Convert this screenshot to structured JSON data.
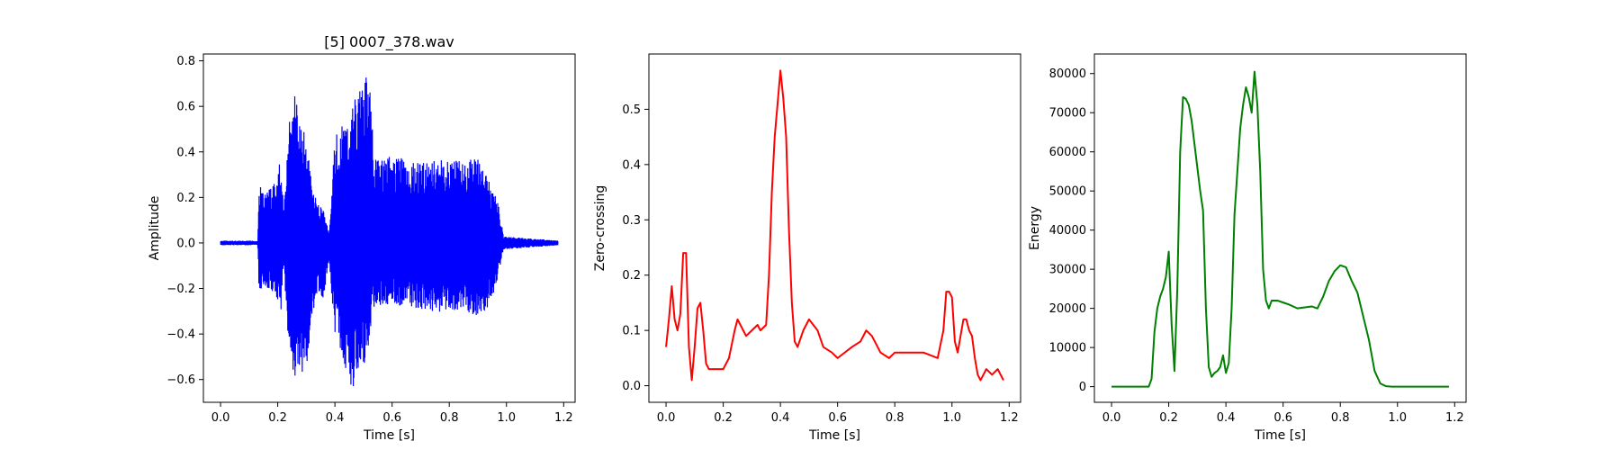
{
  "chart_data": [
    {
      "type": "line",
      "title": "[5] 0007_378.wav",
      "xlabel": "Time [s]",
      "ylabel": "Amplitude",
      "xlim": [
        -0.06,
        1.24
      ],
      "ylim": [
        -0.7,
        0.83
      ],
      "xticks": [
        0.0,
        0.2,
        0.4,
        0.6,
        0.8,
        1.0,
        1.2
      ],
      "yticks": [
        -0.6,
        -0.4,
        -0.2,
        0.0,
        0.2,
        0.4,
        0.6,
        0.8
      ],
      "xtick_labels": [
        "0.0",
        "0.2",
        "0.4",
        "0.6",
        "0.8",
        "1.0",
        "1.2"
      ],
      "ytick_labels": [
        "−0.6",
        "−0.4",
        "−0.2",
        "0.0",
        "0.2",
        "0.4",
        "0.6",
        "0.8"
      ],
      "grid": false,
      "color": "#0000ff",
      "envelope": {
        "x": [
          0.0,
          0.13,
          0.135,
          0.15,
          0.18,
          0.2,
          0.21,
          0.22,
          0.24,
          0.26,
          0.28,
          0.3,
          0.32,
          0.34,
          0.36,
          0.37,
          0.38,
          0.4,
          0.42,
          0.44,
          0.46,
          0.48,
          0.5,
          0.52,
          0.54,
          0.56,
          0.6,
          0.64,
          0.7,
          0.76,
          0.8,
          0.84,
          0.88,
          0.9,
          0.93,
          0.95,
          0.97,
          0.99,
          1.18
        ],
        "upper": [
          0.01,
          0.01,
          0.27,
          0.23,
          0.25,
          0.28,
          0.4,
          0.15,
          0.55,
          0.66,
          0.55,
          0.45,
          0.25,
          0.17,
          0.15,
          0.09,
          0.05,
          0.47,
          0.53,
          0.52,
          0.6,
          0.67,
          0.76,
          0.7,
          0.4,
          0.37,
          0.39,
          0.37,
          0.35,
          0.37,
          0.38,
          0.38,
          0.38,
          0.37,
          0.3,
          0.25,
          0.18,
          0.03,
          0.01
        ],
        "lower": [
          -0.01,
          -0.01,
          -0.23,
          -0.2,
          -0.21,
          -0.25,
          -0.33,
          -0.1,
          -0.5,
          -0.6,
          -0.58,
          -0.55,
          -0.33,
          -0.2,
          -0.27,
          -0.15,
          -0.1,
          -0.4,
          -0.48,
          -0.6,
          -0.65,
          -0.58,
          -0.55,
          -0.43,
          -0.28,
          -0.28,
          -0.27,
          -0.28,
          -0.29,
          -0.31,
          -0.31,
          -0.31,
          -0.32,
          -0.32,
          -0.3,
          -0.25,
          -0.15,
          -0.03,
          -0.01
        ]
      }
    },
    {
      "type": "line",
      "title": "",
      "xlabel": "Time [s]",
      "ylabel": "Zero-crossing",
      "xlim": [
        -0.06,
        1.24
      ],
      "ylim": [
        -0.03,
        0.6
      ],
      "xticks": [
        0.0,
        0.2,
        0.4,
        0.6,
        0.8,
        1.0,
        1.2
      ],
      "yticks": [
        0.0,
        0.1,
        0.2,
        0.3,
        0.4,
        0.5
      ],
      "xtick_labels": [
        "0.0",
        "0.2",
        "0.4",
        "0.6",
        "0.8",
        "1.0",
        "1.2"
      ],
      "ytick_labels": [
        "0.0",
        "0.1",
        "0.2",
        "0.3",
        "0.4",
        "0.5"
      ],
      "grid": false,
      "color": "#ff0000",
      "x": [
        0.0,
        0.01,
        0.02,
        0.03,
        0.04,
        0.05,
        0.06,
        0.07,
        0.08,
        0.09,
        0.1,
        0.11,
        0.12,
        0.13,
        0.14,
        0.15,
        0.2,
        0.22,
        0.24,
        0.25,
        0.27,
        0.28,
        0.3,
        0.32,
        0.33,
        0.35,
        0.36,
        0.37,
        0.38,
        0.39,
        0.4,
        0.41,
        0.42,
        0.43,
        0.44,
        0.45,
        0.46,
        0.48,
        0.5,
        0.53,
        0.55,
        0.58,
        0.6,
        0.65,
        0.68,
        0.7,
        0.72,
        0.75,
        0.78,
        0.8,
        0.85,
        0.9,
        0.95,
        0.97,
        0.98,
        0.99,
        1.0,
        1.01,
        1.02,
        1.03,
        1.04,
        1.05,
        1.06,
        1.07,
        1.08,
        1.09,
        1.1,
        1.11,
        1.12,
        1.14,
        1.16,
        1.18
      ],
      "y": [
        0.07,
        0.12,
        0.18,
        0.12,
        0.1,
        0.13,
        0.24,
        0.24,
        0.07,
        0.01,
        0.07,
        0.14,
        0.15,
        0.1,
        0.04,
        0.03,
        0.03,
        0.05,
        0.1,
        0.12,
        0.1,
        0.09,
        0.1,
        0.11,
        0.1,
        0.11,
        0.2,
        0.35,
        0.45,
        0.51,
        0.57,
        0.52,
        0.45,
        0.28,
        0.15,
        0.08,
        0.07,
        0.1,
        0.12,
        0.1,
        0.07,
        0.06,
        0.05,
        0.07,
        0.08,
        0.1,
        0.09,
        0.06,
        0.05,
        0.06,
        0.06,
        0.06,
        0.05,
        0.1,
        0.17,
        0.17,
        0.16,
        0.08,
        0.06,
        0.09,
        0.12,
        0.12,
        0.1,
        0.09,
        0.05,
        0.02,
        0.01,
        0.02,
        0.03,
        0.02,
        0.03,
        0.01
      ]
    },
    {
      "type": "line",
      "title": "",
      "xlabel": "Time [s]",
      "ylabel": "Energy",
      "xlim": [
        -0.06,
        1.24
      ],
      "ylim": [
        -4000,
        85000
      ],
      "xticks": [
        0.0,
        0.2,
        0.4,
        0.6,
        0.8,
        1.0,
        1.2
      ],
      "yticks": [
        0,
        10000,
        20000,
        30000,
        40000,
        50000,
        60000,
        70000,
        80000
      ],
      "xtick_labels": [
        "0.0",
        "0.2",
        "0.4",
        "0.6",
        "0.8",
        "1.0",
        "1.2"
      ],
      "ytick_labels": [
        "0",
        "10000",
        "20000",
        "30000",
        "40000",
        "50000",
        "60000",
        "70000",
        "80000"
      ],
      "grid": false,
      "color": "#008000",
      "x": [
        0.0,
        0.13,
        0.14,
        0.15,
        0.16,
        0.17,
        0.18,
        0.19,
        0.2,
        0.21,
        0.22,
        0.23,
        0.24,
        0.25,
        0.26,
        0.27,
        0.28,
        0.29,
        0.3,
        0.31,
        0.32,
        0.33,
        0.34,
        0.35,
        0.36,
        0.37,
        0.38,
        0.39,
        0.4,
        0.41,
        0.42,
        0.43,
        0.44,
        0.45,
        0.46,
        0.47,
        0.48,
        0.49,
        0.5,
        0.51,
        0.52,
        0.53,
        0.54,
        0.55,
        0.56,
        0.58,
        0.6,
        0.62,
        0.65,
        0.7,
        0.72,
        0.74,
        0.76,
        0.78,
        0.8,
        0.82,
        0.84,
        0.86,
        0.88,
        0.9,
        0.92,
        0.94,
        0.96,
        0.98,
        1.0,
        1.18
      ],
      "y": [
        0,
        0,
        2000,
        14000,
        20000,
        23000,
        25000,
        28000,
        34500,
        16000,
        4000,
        25000,
        60000,
        74000,
        73500,
        72000,
        68000,
        62000,
        56000,
        50000,
        45000,
        20000,
        5000,
        2500,
        3500,
        4000,
        5000,
        8000,
        3500,
        6000,
        20000,
        44000,
        55000,
        66000,
        72000,
        76500,
        74000,
        70000,
        80500,
        72000,
        55000,
        30000,
        22000,
        20000,
        22000,
        22000,
        21500,
        21000,
        20000,
        20500,
        20000,
        23000,
        27000,
        29500,
        31000,
        30500,
        27000,
        24000,
        18000,
        12000,
        4000,
        800,
        100,
        0,
        0,
        0
      ]
    }
  ]
}
